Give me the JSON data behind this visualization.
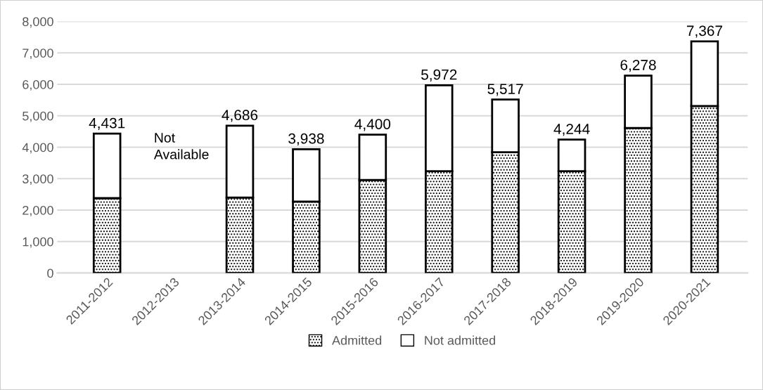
{
  "chart_data": {
    "type": "bar",
    "stacked": true,
    "categories": [
      "2011-2012",
      "2012-2013",
      "2013-2014",
      "2014-2015",
      "2015-2016",
      "2016-2017",
      "2017-2018",
      "2018-2019",
      "2019-2020",
      "2020-2021"
    ],
    "series": [
      {
        "name": "Admitted",
        "color": "#000000",
        "values": [
          2380,
          null,
          2400,
          2270,
          2960,
          3240,
          3840,
          3240,
          4610,
          5310
        ]
      },
      {
        "name": "Not admitted",
        "color": "#ffffff",
        "values": [
          2051,
          null,
          2286,
          1668,
          1440,
          2732,
          1677,
          1004,
          1668,
          2057
        ]
      }
    ],
    "totals": [
      "4,431",
      null,
      "4,686",
      "3,938",
      "4,400",
      "5,972",
      "5,517",
      "4,244",
      "6,278",
      "7,367"
    ],
    "annotations": [
      "Not\nAvailable"
    ],
    "ylim": [
      0,
      8000
    ],
    "yticks": [
      {
        "value": 0,
        "label": "0"
      },
      {
        "value": 1000,
        "label": "1,000"
      },
      {
        "value": 2000,
        "label": "2,000"
      },
      {
        "value": 3000,
        "label": "3,000"
      },
      {
        "value": 4000,
        "label": "4,000"
      },
      {
        "value": 5000,
        "label": "5,000"
      },
      {
        "value": 6000,
        "label": "6,000"
      },
      {
        "value": 7000,
        "label": "7,000"
      },
      {
        "value": 8000,
        "label": "8,000"
      }
    ],
    "grid": "y",
    "legend": "bottom"
  }
}
